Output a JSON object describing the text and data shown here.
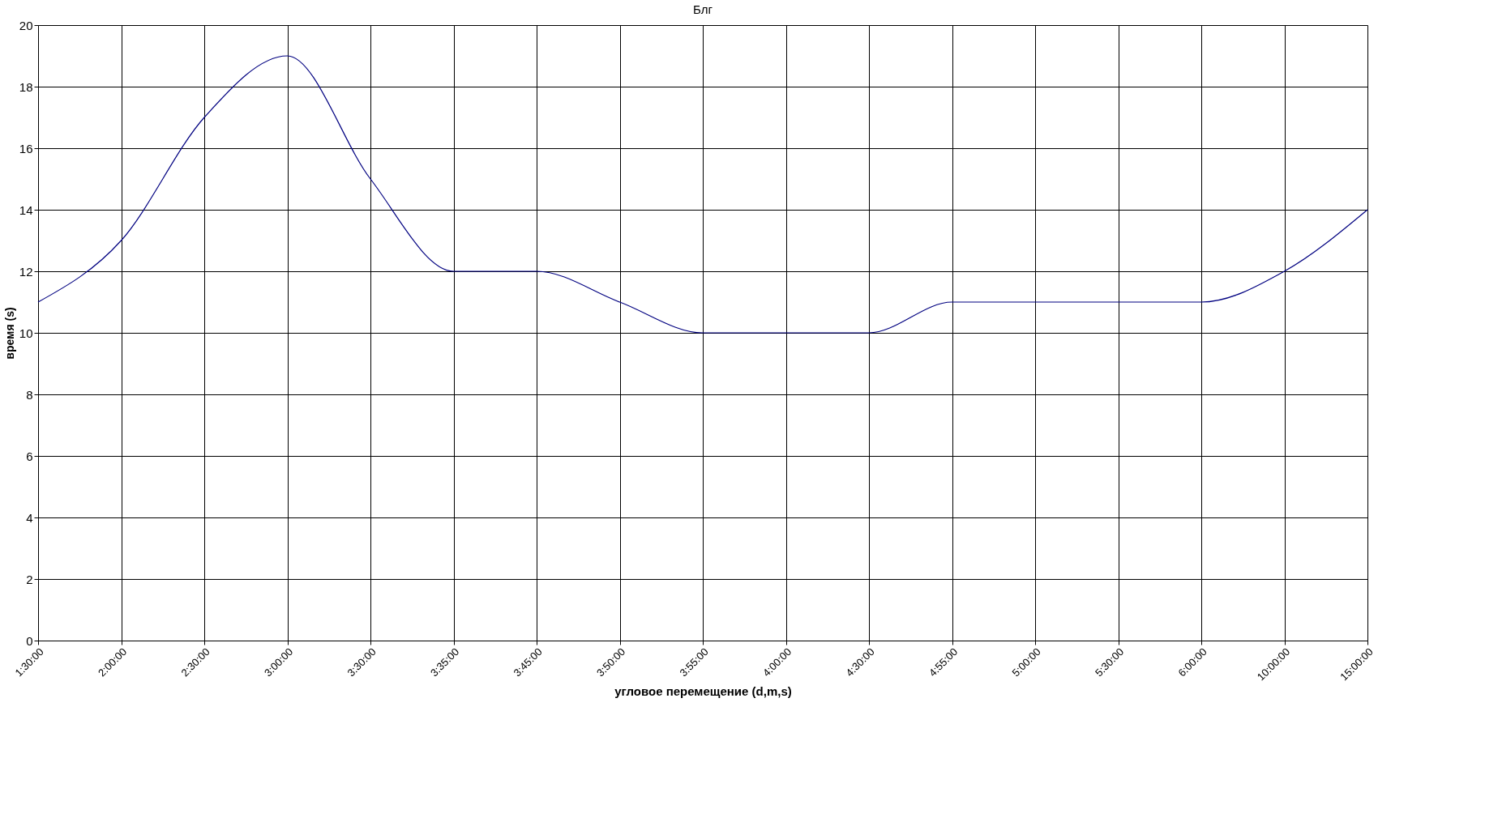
{
  "chart_data": {
    "type": "line",
    "title": "Блг",
    "xlabel": "угловое перемещение (d,m,s)",
    "ylabel": "время (s)",
    "categories": [
      "1:30:00",
      "2:00:00",
      "2:30:00",
      "3:00:00",
      "3:30:00",
      "3:35:00",
      "3:45:00",
      "3:50:00",
      "3:55:00",
      "4:00:00",
      "4:30:00",
      "4:55:00",
      "5:00:00",
      "5:30:00",
      "6:00:00",
      "10:00:00",
      "15:00:00"
    ],
    "series": [
      {
        "color": "#000080",
        "values": [
          11,
          13,
          17,
          19,
          15,
          12,
          12,
          11,
          10,
          10,
          10,
          11,
          11,
          11,
          11,
          12,
          14
        ]
      }
    ],
    "ylim": [
      0,
      20
    ],
    "yticks": [
      0,
      2,
      4,
      6,
      8,
      10,
      12,
      14,
      16,
      18,
      20
    ],
    "grid": true,
    "legend": false,
    "marker": "none",
    "line_style": "solid"
  }
}
